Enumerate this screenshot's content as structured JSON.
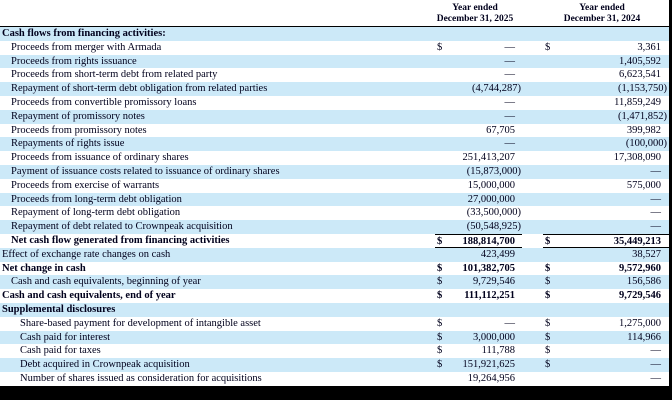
{
  "header": {
    "col1": {
      "line1": "Year ended",
      "line2": "December 31, 2025"
    },
    "col2": {
      "line1": "Year ended",
      "line2": "December 31, 2024"
    }
  },
  "colors": {
    "row_shade": "#cce9f8",
    "text": "#00001c",
    "rule": "#000000",
    "background": "#ffffff"
  },
  "table": {
    "rows": [
      {
        "label": "Cash flows from financing activities:",
        "indent": 0,
        "bold": true,
        "shade": true,
        "total": false,
        "d1": "",
        "v1": "",
        "d2": "",
        "v2": ""
      },
      {
        "label": "Proceeds from merger with Armada",
        "indent": 1,
        "bold": false,
        "shade": false,
        "total": false,
        "d1": "$",
        "v1": "—",
        "d2": "$",
        "v2": "3,361"
      },
      {
        "label": "Proceeds from rights issuance",
        "indent": 1,
        "bold": false,
        "shade": true,
        "total": false,
        "d1": "",
        "v1": "—",
        "d2": "",
        "v2": "1,405,592"
      },
      {
        "label": "Proceeds from short-term debt from related party",
        "indent": 1,
        "bold": false,
        "shade": false,
        "total": false,
        "d1": "",
        "v1": "—",
        "d2": "",
        "v2": "6,623,541"
      },
      {
        "label": "Repayment of short-term debt obligation from related parties",
        "indent": 1,
        "bold": false,
        "shade": true,
        "total": false,
        "d1": "",
        "v1": "(4,744,287)",
        "d2": "",
        "v2": "(1,153,750)"
      },
      {
        "label": "Proceeds from convertible promissory loans",
        "indent": 1,
        "bold": false,
        "shade": false,
        "total": false,
        "d1": "",
        "v1": "—",
        "d2": "",
        "v2": "11,859,249"
      },
      {
        "label": "Repayment of promissory notes",
        "indent": 1,
        "bold": false,
        "shade": true,
        "total": false,
        "d1": "",
        "v1": "—",
        "d2": "",
        "v2": "(1,471,852)"
      },
      {
        "label": "Proceeds from promissory notes",
        "indent": 1,
        "bold": false,
        "shade": false,
        "total": false,
        "d1": "",
        "v1": "67,705",
        "d2": "",
        "v2": "399,982"
      },
      {
        "label": "Repayments of rights issue",
        "indent": 1,
        "bold": false,
        "shade": true,
        "total": false,
        "d1": "",
        "v1": "—",
        "d2": "",
        "v2": "(100,000)"
      },
      {
        "label": "Proceeds from issuance of ordinary shares",
        "indent": 1,
        "bold": false,
        "shade": false,
        "total": false,
        "d1": "",
        "v1": "251,413,207",
        "d2": "",
        "v2": "17,308,090"
      },
      {
        "label": "Payment of issuance costs related to issuance of ordinary shares",
        "indent": 1,
        "bold": false,
        "shade": true,
        "total": false,
        "d1": "",
        "v1": "(15,873,000)",
        "d2": "",
        "v2": "—"
      },
      {
        "label": "Proceeds from exercise of warrants",
        "indent": 1,
        "bold": false,
        "shade": false,
        "total": false,
        "d1": "",
        "v1": "15,000,000",
        "d2": "",
        "v2": "575,000"
      },
      {
        "label": "Proceeds from long-term debt obligation",
        "indent": 1,
        "bold": false,
        "shade": true,
        "total": false,
        "d1": "",
        "v1": "27,000,000",
        "d2": "",
        "v2": "—"
      },
      {
        "label": "Repayment of long-term debt obligation",
        "indent": 1,
        "bold": false,
        "shade": false,
        "total": false,
        "d1": "",
        "v1": "(33,500,000)",
        "d2": "",
        "v2": "—"
      },
      {
        "label": "Repayment of debt related to Crownpeak acquisition",
        "indent": 1,
        "bold": false,
        "shade": true,
        "total": false,
        "d1": "",
        "v1": "(50,548,925)",
        "d2": "",
        "v2": "—"
      },
      {
        "label": "Net cash flow generated from financing activities",
        "indent": 1,
        "bold": true,
        "shade": false,
        "total": true,
        "d1": "$",
        "v1": "188,814,700",
        "d2": "$",
        "v2": "35,449,213"
      },
      {
        "label": "Effect of exchange rate changes on cash",
        "indent": 0,
        "bold": false,
        "shade": true,
        "total": false,
        "d1": "",
        "v1": "423,499",
        "d2": "",
        "v2": "38,527"
      },
      {
        "label": "Net change in cash",
        "indent": 0,
        "bold": true,
        "shade": false,
        "total": false,
        "d1": "$",
        "v1": "101,382,705",
        "d2": "$",
        "v2": "9,572,960"
      },
      {
        "label": "Cash and cash equivalents, beginning of year",
        "indent": 1,
        "bold": false,
        "shade": true,
        "total": false,
        "d1": "$",
        "v1": "9,729,546",
        "d2": "$",
        "v2": "156,586"
      },
      {
        "label": "Cash and cash equivalents, end of year",
        "indent": 0,
        "bold": true,
        "shade": false,
        "total": false,
        "d1": "$",
        "v1": "111,112,251",
        "d2": "$",
        "v2": "9,729,546"
      },
      {
        "label": "Supplemental disclosures",
        "indent": 0,
        "bold": true,
        "shade": true,
        "total": false,
        "d1": "",
        "v1": "",
        "d2": "",
        "v2": ""
      },
      {
        "label": "Share-based payment for development of intangible asset",
        "indent": 2,
        "bold": false,
        "shade": false,
        "total": false,
        "d1": "$",
        "v1": "—",
        "d2": "$",
        "v2": "1,275,000"
      },
      {
        "label": "Cash paid for interest",
        "indent": 2,
        "bold": false,
        "shade": true,
        "total": false,
        "d1": "$",
        "v1": "3,000,000",
        "d2": "$",
        "v2": "114,966"
      },
      {
        "label": "Cash paid for taxes",
        "indent": 2,
        "bold": false,
        "shade": false,
        "total": false,
        "d1": "$",
        "v1": "111,788",
        "d2": "$",
        "v2": "—"
      },
      {
        "label": "Debt acquired in Crownpeak acquisition",
        "indent": 2,
        "bold": false,
        "shade": true,
        "total": false,
        "d1": "$",
        "v1": "151,921,625",
        "d2": "$",
        "v2": "—"
      },
      {
        "label": "Number of shares issued as consideration for acquisitions",
        "indent": 2,
        "bold": false,
        "shade": false,
        "total": false,
        "d1": "",
        "v1": "19,264,956",
        "d2": "",
        "v2": "—"
      }
    ]
  }
}
